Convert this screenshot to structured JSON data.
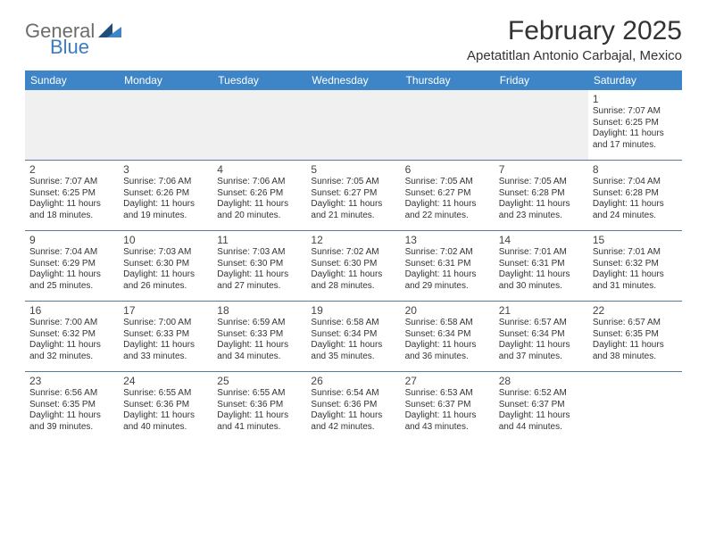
{
  "logo": {
    "text_general": "General",
    "text_blue": "Blue",
    "tri_color_dark": "#1f4e79",
    "tri_color_light": "#3d85c6"
  },
  "title": "February 2025",
  "location": "Apetatitlan Antonio Carbajal, Mexico",
  "colors": {
    "header_bg": "#3d85c6",
    "header_text": "#ffffff",
    "divider": "#5a7a9a",
    "blank_bg": "#f0f0f0",
    "text": "#333333"
  },
  "day_headers": [
    "Sunday",
    "Monday",
    "Tuesday",
    "Wednesday",
    "Thursday",
    "Friday",
    "Saturday"
  ],
  "weeks": [
    [
      {
        "num": "",
        "lines": []
      },
      {
        "num": "",
        "lines": []
      },
      {
        "num": "",
        "lines": []
      },
      {
        "num": "",
        "lines": []
      },
      {
        "num": "",
        "lines": []
      },
      {
        "num": "",
        "lines": []
      },
      {
        "num": "1",
        "lines": [
          "Sunrise: 7:07 AM",
          "Sunset: 6:25 PM",
          "Daylight: 11 hours and 17 minutes."
        ]
      }
    ],
    [
      {
        "num": "2",
        "lines": [
          "Sunrise: 7:07 AM",
          "Sunset: 6:25 PM",
          "Daylight: 11 hours and 18 minutes."
        ]
      },
      {
        "num": "3",
        "lines": [
          "Sunrise: 7:06 AM",
          "Sunset: 6:26 PM",
          "Daylight: 11 hours and 19 minutes."
        ]
      },
      {
        "num": "4",
        "lines": [
          "Sunrise: 7:06 AM",
          "Sunset: 6:26 PM",
          "Daylight: 11 hours and 20 minutes."
        ]
      },
      {
        "num": "5",
        "lines": [
          "Sunrise: 7:05 AM",
          "Sunset: 6:27 PM",
          "Daylight: 11 hours and 21 minutes."
        ]
      },
      {
        "num": "6",
        "lines": [
          "Sunrise: 7:05 AM",
          "Sunset: 6:27 PM",
          "Daylight: 11 hours and 22 minutes."
        ]
      },
      {
        "num": "7",
        "lines": [
          "Sunrise: 7:05 AM",
          "Sunset: 6:28 PM",
          "Daylight: 11 hours and 23 minutes."
        ]
      },
      {
        "num": "8",
        "lines": [
          "Sunrise: 7:04 AM",
          "Sunset: 6:28 PM",
          "Daylight: 11 hours and 24 minutes."
        ]
      }
    ],
    [
      {
        "num": "9",
        "lines": [
          "Sunrise: 7:04 AM",
          "Sunset: 6:29 PM",
          "Daylight: 11 hours and 25 minutes."
        ]
      },
      {
        "num": "10",
        "lines": [
          "Sunrise: 7:03 AM",
          "Sunset: 6:30 PM",
          "Daylight: 11 hours and 26 minutes."
        ]
      },
      {
        "num": "11",
        "lines": [
          "Sunrise: 7:03 AM",
          "Sunset: 6:30 PM",
          "Daylight: 11 hours and 27 minutes."
        ]
      },
      {
        "num": "12",
        "lines": [
          "Sunrise: 7:02 AM",
          "Sunset: 6:30 PM",
          "Daylight: 11 hours and 28 minutes."
        ]
      },
      {
        "num": "13",
        "lines": [
          "Sunrise: 7:02 AM",
          "Sunset: 6:31 PM",
          "Daylight: 11 hours and 29 minutes."
        ]
      },
      {
        "num": "14",
        "lines": [
          "Sunrise: 7:01 AM",
          "Sunset: 6:31 PM",
          "Daylight: 11 hours and 30 minutes."
        ]
      },
      {
        "num": "15",
        "lines": [
          "Sunrise: 7:01 AM",
          "Sunset: 6:32 PM",
          "Daylight: 11 hours and 31 minutes."
        ]
      }
    ],
    [
      {
        "num": "16",
        "lines": [
          "Sunrise: 7:00 AM",
          "Sunset: 6:32 PM",
          "Daylight: 11 hours and 32 minutes."
        ]
      },
      {
        "num": "17",
        "lines": [
          "Sunrise: 7:00 AM",
          "Sunset: 6:33 PM",
          "Daylight: 11 hours and 33 minutes."
        ]
      },
      {
        "num": "18",
        "lines": [
          "Sunrise: 6:59 AM",
          "Sunset: 6:33 PM",
          "Daylight: 11 hours and 34 minutes."
        ]
      },
      {
        "num": "19",
        "lines": [
          "Sunrise: 6:58 AM",
          "Sunset: 6:34 PM",
          "Daylight: 11 hours and 35 minutes."
        ]
      },
      {
        "num": "20",
        "lines": [
          "Sunrise: 6:58 AM",
          "Sunset: 6:34 PM",
          "Daylight: 11 hours and 36 minutes."
        ]
      },
      {
        "num": "21",
        "lines": [
          "Sunrise: 6:57 AM",
          "Sunset: 6:34 PM",
          "Daylight: 11 hours and 37 minutes."
        ]
      },
      {
        "num": "22",
        "lines": [
          "Sunrise: 6:57 AM",
          "Sunset: 6:35 PM",
          "Daylight: 11 hours and 38 minutes."
        ]
      }
    ],
    [
      {
        "num": "23",
        "lines": [
          "Sunrise: 6:56 AM",
          "Sunset: 6:35 PM",
          "Daylight: 11 hours and 39 minutes."
        ]
      },
      {
        "num": "24",
        "lines": [
          "Sunrise: 6:55 AM",
          "Sunset: 6:36 PM",
          "Daylight: 11 hours and 40 minutes."
        ]
      },
      {
        "num": "25",
        "lines": [
          "Sunrise: 6:55 AM",
          "Sunset: 6:36 PM",
          "Daylight: 11 hours and 41 minutes."
        ]
      },
      {
        "num": "26",
        "lines": [
          "Sunrise: 6:54 AM",
          "Sunset: 6:36 PM",
          "Daylight: 11 hours and 42 minutes."
        ]
      },
      {
        "num": "27",
        "lines": [
          "Sunrise: 6:53 AM",
          "Sunset: 6:37 PM",
          "Daylight: 11 hours and 43 minutes."
        ]
      },
      {
        "num": "28",
        "lines": [
          "Sunrise: 6:52 AM",
          "Sunset: 6:37 PM",
          "Daylight: 11 hours and 44 minutes."
        ]
      },
      {
        "num": "",
        "lines": []
      }
    ]
  ]
}
